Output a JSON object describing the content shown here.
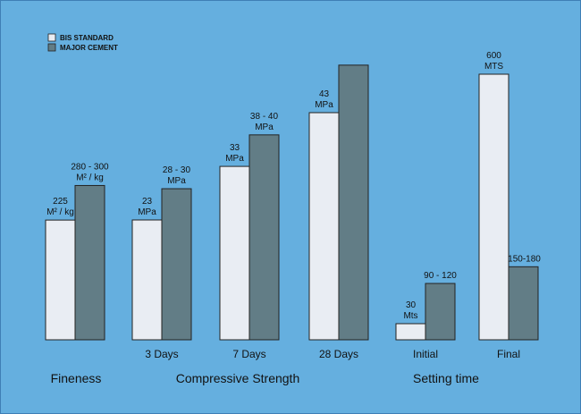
{
  "chart_data": {
    "type": "bar",
    "title": "",
    "colors": {
      "background": "#65afdf",
      "bis": "#e9edf3",
      "major": "#627d86"
    },
    "series": [
      {
        "name": "BIS STANDARD",
        "values": [
          225,
          23,
          33,
          43,
          30,
          600
        ],
        "labels": [
          "225\nM² / kg",
          "23\nMPa",
          "33\nMPa",
          "43\nMPa",
          "30\nMts",
          "600\nMTS"
        ]
      },
      {
        "name": "MAJOR CEMENT",
        "values": [
          290,
          29,
          39,
          52,
          105,
          165
        ],
        "labels": [
          "280 - 300\nM² / kg",
          "28 - 30\nMPa",
          "38 - 40\nMPa",
          "",
          "90 - 120",
          "150-180"
        ]
      }
    ],
    "categories": [
      "",
      "3 Days",
      "7 Days",
      "28 Days",
      "Initial",
      "Final"
    ],
    "groups": [
      "Fineness",
      "Compressive Strength",
      "Setting time"
    ],
    "scale_note": "bars for each category drawn relative to their own group scale"
  }
}
